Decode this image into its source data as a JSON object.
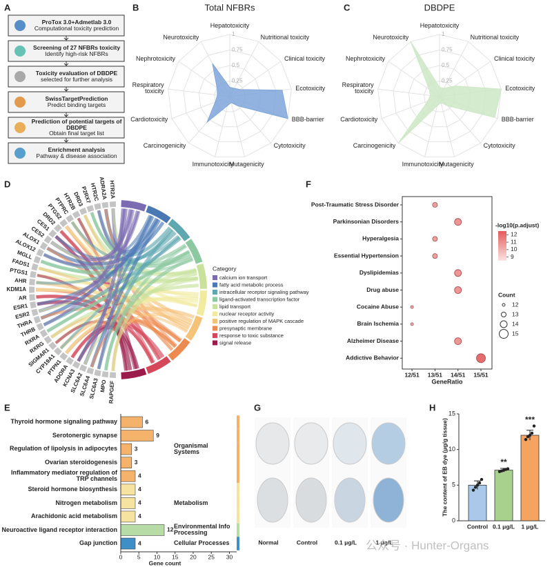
{
  "panel_labels": [
    "A",
    "B",
    "C",
    "D",
    "E",
    "F",
    "G",
    "H"
  ],
  "workflow": {
    "steps": [
      {
        "title": "ProTox 3.0+Admetlab 3.0",
        "subtitle": "Computational toxicity prediction"
      },
      {
        "title": "Screening of 27 NFBRs toxicity",
        "subtitle": "Identify high-risk NFBRs"
      },
      {
        "title": "Toxicity evaluation of DBDPE",
        "subtitle": "selected for further analysis"
      },
      {
        "title": "SwissTargetPrediction",
        "subtitle": "Predict binding targets"
      },
      {
        "title": "Prediction of potential targets of DBDPE",
        "subtitle": "Obtain final target list"
      },
      {
        "title": "Enrichment analysis",
        "subtitle": "Pathway & disease association"
      }
    ]
  },
  "chart_data": [
    {
      "type": "radar",
      "title": "Total NFBRs",
      "color": "#7fa6da",
      "axes": [
        "Hepatotoxicity",
        "Nutritional toxicity",
        "Clinical toxicity",
        "Ecotoxicity",
        "BBB-barrier",
        "Cytotoxicity",
        "Mutagenicity",
        "Immunotoxicity",
        "Carcinogenicity",
        "Cardiotoxicity",
        "Respiratory toxicity",
        "Nephrotoxicity",
        "Neurotoxicity"
      ],
      "values": [
        0.15,
        0.15,
        0.2,
        0.85,
        1.0,
        0.2,
        0.1,
        0.15,
        0.55,
        0.25,
        0.2,
        0.25,
        0.6
      ],
      "rlim": [
        0,
        1
      ],
      "rticks": [
        0.25,
        0.5,
        0.75,
        1
      ]
    },
    {
      "type": "radar",
      "title": "DBDPE",
      "color": "#cde8c6",
      "axes": [
        "Hepatotoxicity",
        "Nutritional toxicity",
        "Clinical toxicity",
        "Ecotoxicity",
        "BBB-barrier",
        "Cytotoxicity",
        "Mutagenicity",
        "Immunotoxicity",
        "Carcinogenicity",
        "Cardiotoxicity",
        "Respiratory toxicity",
        "Nephrotoxicity",
        "Neurotoxicity"
      ],
      "values": [
        0.15,
        0.15,
        0.3,
        1.0,
        0.95,
        0.2,
        0.1,
        0.15,
        1.0,
        0.2,
        0.15,
        0.2,
        1.0
      ],
      "rlim": [
        0,
        1
      ],
      "rticks": [
        0.25,
        0.5,
        0.75,
        1
      ]
    },
    {
      "type": "chord",
      "category_title": "Category",
      "genes": [
        "HTR2A",
        "ADRA2A",
        "HTR2C",
        "P2RX7",
        "DRD3",
        "HTR2B",
        "PTPRC",
        "PTGS2",
        "DRD2",
        "CES1",
        "CES2",
        "ALOX1",
        "ALOX12",
        "MGLL",
        "FADS1",
        "PTGS1",
        "AHR",
        "KDM1A",
        "AR",
        "ESR1",
        "ESR2",
        "THRA",
        "THRB",
        "RXRA",
        "RXRG",
        "SIGMAR1",
        "CYP19A1",
        "PTPN1",
        "ADORA",
        "KCNA3",
        "SLC6A2",
        "SLC6A4",
        "SLC6A3",
        "MPO",
        "RAPGEF"
      ],
      "categories": [
        "calcium ion transport",
        "fatty acid metabolic process",
        "intracellular receptor signaling pathway",
        "ligand-activated transcription factor",
        "lipid transport",
        "nuclear receptor activity",
        "positive regulation of MAPK cascade",
        "presynaptic membrane",
        "response to toxic substance",
        "signal release"
      ],
      "colors": [
        "#7b6bb0",
        "#4a78b5",
        "#5fa8b0",
        "#8cc8a0",
        "#c8e29c",
        "#f1eba0",
        "#f5c27a",
        "#ec8a50",
        "#d4485a",
        "#9b1b4a"
      ]
    },
    {
      "type": "dot",
      "x_label": "GeneRatio",
      "categories": [
        "Post-Traumatic Stress Disorder",
        "Parkinsonian Disorders",
        "Hyperalgesia",
        "Essential Hypertension",
        "Dyslipidemias",
        "Drug abuse",
        "Cocaine Abuse",
        "Brain Ischemia",
        "Alzheimer Disease",
        "Addictive Behavior"
      ],
      "values": [
        0.2549,
        0.2745,
        0.2549,
        0.2549,
        0.2745,
        0.2745,
        0.2353,
        0.2353,
        0.2745,
        0.2941
      ],
      "sizes": [
        13,
        14,
        13,
        13,
        14,
        14,
        12,
        12,
        14,
        15
      ],
      "color_values": [
        10.5,
        10.8,
        10.5,
        10.5,
        10.8,
        10.8,
        10,
        10,
        10.8,
        12
      ],
      "xlim": [
        0.227,
        0.3035
      ],
      "xticks": [
        {
          "value": 0.2353,
          "label": "12/51"
        },
        {
          "value": 0.2549,
          "label": "13/51"
        },
        {
          "value": 0.2745,
          "label": "14/51"
        },
        {
          "value": 0.2941,
          "label": "15/51"
        }
      ],
      "color_title": "-log10(p.adjust)",
      "color_lim": [
        8.5,
        12.5
      ],
      "color_ticks": [
        12,
        11,
        10,
        9
      ],
      "size_title": "Count",
      "size_ticks": [
        12,
        13,
        14,
        15
      ]
    },
    {
      "type": "hbar",
      "x_label": "Gene count",
      "categories": [
        "Thyroid hormone signaling pathway",
        "Serotonergic synapse",
        "Regulation of lipolysis in adipocytes",
        "Ovarian steroidogenesis",
        "Inflammatory mediator regulation of TRP channels",
        "Steroid hormone biosynthesis",
        "Nitrogen metabolism",
        "Arachidonic acid metabolism",
        "Neuroactive ligand receptor interaction",
        "Gap junction"
      ],
      "values": [
        6,
        9,
        3,
        3,
        4,
        4,
        4,
        4,
        12,
        4
      ],
      "groups": [
        "Organismal Systems",
        "Organismal Systems",
        "Organismal Systems",
        "Organismal Systems",
        "Organismal Systems",
        "Metabolism",
        "Metabolism",
        "Metabolism",
        "Environmental Info Processing",
        "Cellular Processes"
      ],
      "group_names": [
        "Organismal Systems",
        "Metabolism",
        "Environmental Info Processing",
        "Cellular Processes"
      ],
      "group_colors": [
        "#f5b26b",
        "#f7e3a0",
        "#b7dca5",
        "#3d8fc6"
      ],
      "xlim": [
        0,
        32
      ],
      "xticks": [
        0,
        5,
        10,
        15,
        20,
        25,
        30
      ]
    },
    {
      "type": "bar",
      "y_label": "The content of EB dye (μg/g tissue)",
      "categories": [
        "Control",
        "0.1 μg/L",
        "1 μg/L"
      ],
      "values": [
        5.0,
        7.1,
        12.0
      ],
      "errors": [
        0.6,
        0.25,
        0.7
      ],
      "points": [
        [
          4.3,
          4.7,
          5.0,
          5.3,
          5.8
        ],
        [
          6.9,
          7.0,
          7.1,
          7.2,
          7.3
        ],
        [
          11.4,
          11.8,
          12.0,
          12.3,
          13.3
        ]
      ],
      "colors": [
        "#a9c8ea",
        "#a9d18e",
        "#f4a460"
      ],
      "annotations": [
        null,
        "**",
        "***"
      ],
      "ylim": [
        0,
        15
      ],
      "yticks": [
        0,
        5,
        10,
        15
      ]
    }
  ],
  "images": {
    "labels": [
      "Normal",
      "Control",
      "0.1 μg/L",
      "1 μg/L"
    ]
  },
  "watermark": "公众号 · Hunter-Organs"
}
